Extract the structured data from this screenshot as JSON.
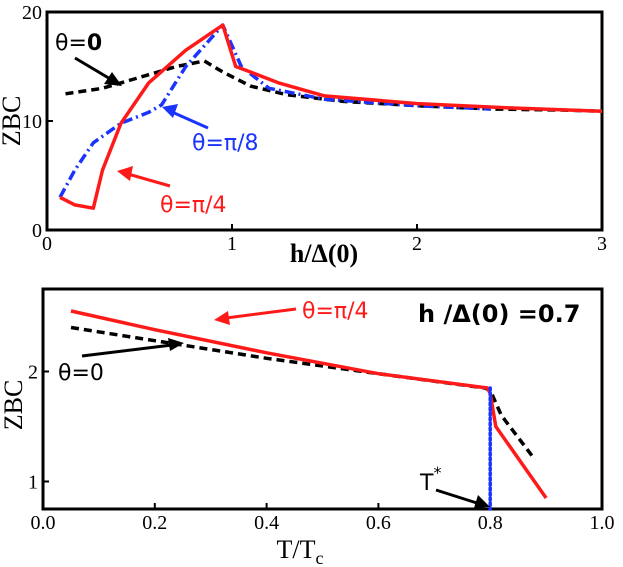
{
  "colors": {
    "red": "#ff1a1a",
    "blue": "#1a33ff",
    "black": "#000000"
  },
  "chart_data": [
    {
      "type": "line",
      "title": "",
      "xlabel": "h/Δ(0)",
      "ylabel": "ZBC",
      "xlim": [
        0,
        3
      ],
      "ylim": [
        0,
        20
      ],
      "xticks": [
        "0",
        "1",
        "2",
        "3"
      ],
      "yticks": [
        "0",
        "10",
        "20"
      ],
      "series": [
        {
          "name": "θ=0",
          "color": "#000000",
          "dash": "dashed",
          "x": [
            0.1,
            0.3,
            0.5,
            0.7,
            0.85,
            0.95,
            1.1,
            1.3,
            1.6,
            2.0,
            2.4,
            2.8,
            3.0
          ],
          "y": [
            12.5,
            13.0,
            14.0,
            15.0,
            15.5,
            14.5,
            13.2,
            12.4,
            11.8,
            11.4,
            11.1,
            11.0,
            10.9
          ]
        },
        {
          "name": "θ=π/8",
          "color": "#1a33ff",
          "dash": "dashdot",
          "x": [
            0.07,
            0.15,
            0.25,
            0.4,
            0.55,
            0.62,
            0.75,
            0.95,
            1.05,
            1.2,
            1.5,
            2.0,
            2.4
          ],
          "y": [
            3.0,
            5.5,
            8.0,
            9.8,
            10.8,
            11.5,
            15.0,
            18.8,
            15.0,
            13.0,
            12.0,
            11.4,
            11.1
          ]
        },
        {
          "name": "θ=π/4",
          "color": "#ff1a1a",
          "dash": "solid",
          "x": [
            0.07,
            0.15,
            0.25,
            0.3,
            0.4,
            0.55,
            0.75,
            0.95,
            1.02,
            1.1,
            1.25,
            1.5,
            2.0,
            2.5,
            3.0
          ],
          "y": [
            3.0,
            2.3,
            2.0,
            5.5,
            9.8,
            13.5,
            16.5,
            18.8,
            15.0,
            14.5,
            13.5,
            12.3,
            11.6,
            11.2,
            10.9
          ]
        }
      ],
      "annotations": [
        {
          "text": "θ=",
          "bold_text": "0",
          "color": "#000000"
        },
        {
          "text": "θ=π/8",
          "color": "#1a33ff"
        },
        {
          "text": "θ=π/4",
          "color": "#ff1a1a"
        }
      ]
    },
    {
      "type": "line",
      "title": "",
      "xlabel": "T/T",
      "xlabel_sub": "c",
      "ylabel": "ZBC",
      "xlim": [
        0.0,
        1.0
      ],
      "ylim": [
        0.75,
        2.75
      ],
      "xticks": [
        "0.0",
        "0.2",
        "0.4",
        "0.6",
        "0.8",
        "1.0"
      ],
      "yticks": [
        "1",
        "2"
      ],
      "series": [
        {
          "name": "θ=0",
          "color": "#000000",
          "dash": "dashed",
          "x": [
            0.05,
            0.2,
            0.4,
            0.6,
            0.79,
            0.8,
            0.82,
            0.88
          ],
          "y": [
            2.4,
            2.28,
            2.12,
            1.98,
            1.85,
            1.83,
            1.6,
            1.2
          ]
        },
        {
          "name": "θ=π/4",
          "color": "#ff1a1a",
          "dash": "solid",
          "x": [
            0.05,
            0.2,
            0.4,
            0.6,
            0.795,
            0.8,
            0.81,
            0.9
          ],
          "y": [
            2.55,
            2.38,
            2.17,
            1.98,
            1.85,
            1.8,
            1.5,
            0.85
          ]
        },
        {
          "name": "",
          "color": "#1a33ff",
          "dash": "dotted",
          "x": [
            0.8,
            0.8
          ],
          "y": [
            1.85,
            0.75
          ]
        }
      ],
      "annotations": [
        {
          "text": "θ=π/4",
          "color": "#ff1a1a"
        },
        {
          "text": "θ=0",
          "color": "#000000"
        },
        {
          "text": "h /Δ(0) =0.7",
          "color": "#000000"
        },
        {
          "text": "T",
          "sup": "*",
          "color": "#000000"
        }
      ]
    }
  ]
}
